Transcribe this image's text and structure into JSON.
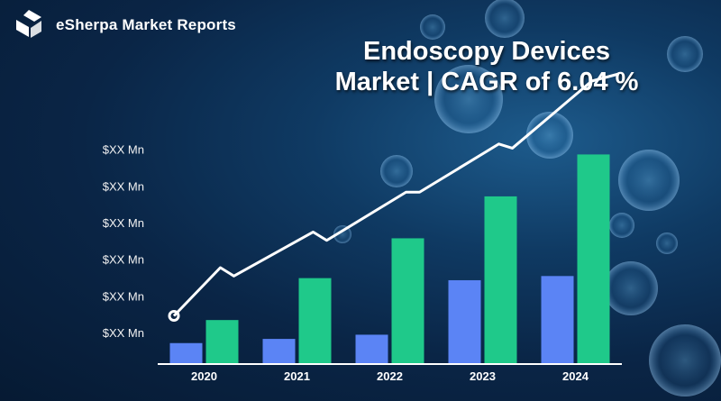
{
  "brand": {
    "name": "eSherpa Market Reports",
    "logo_icon": "esherpa-logo-icon"
  },
  "title": {
    "line1": "Endoscopy Devices",
    "line2": "Market | CAGR of 6.04 %"
  },
  "colors": {
    "series_a": "#5b84f5",
    "series_b": "#1fc98a",
    "trend_line": "#ffffff",
    "background": "#0a2546"
  },
  "chart_data": {
    "type": "bar",
    "categories": [
      "2020",
      "2021",
      "2022",
      "2023",
      "2024"
    ],
    "series": [
      {
        "values": [
          1,
          1.2,
          1.4,
          4,
          4.2
        ]
      },
      {
        "values": [
          2.1,
          4.1,
          6,
          8,
          10
        ]
      }
    ],
    "trend_line": [
      2.3,
      4.6,
      4.2,
      6.3,
      5.9,
      8.2,
      8.2,
      10.5,
      10.3,
      13.5
    ],
    "ylim": [
      0,
      13.5
    ],
    "yticks": [
      "$XX Mn",
      "$XX Mn",
      "$XX Mn",
      "$XX Mn",
      "$XX Mn",
      "$XX Mn"
    ],
    "ytick_values": [
      1.5,
      3.25,
      5,
      6.75,
      8.5,
      10.25
    ],
    "grid": false,
    "legend": "none"
  }
}
